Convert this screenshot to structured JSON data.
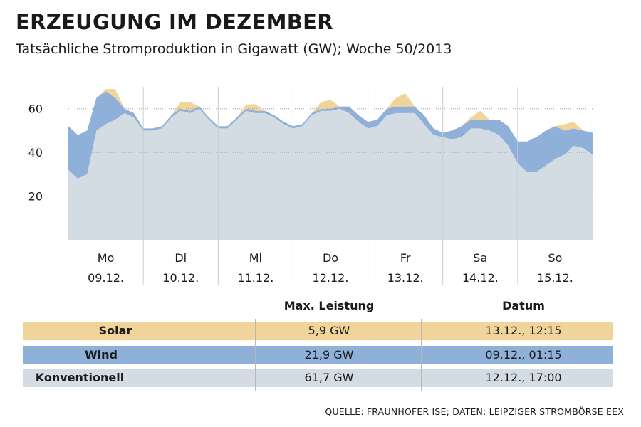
{
  "header": {
    "title": "ERZEUGUNG IM DEZEMBER",
    "subtitle": "Tatsächliche Stromproduktion in Gigawatt (GW); Woche 50/2013"
  },
  "colors": {
    "solar": "#f0d49a",
    "wind": "#8fb0d8",
    "konventionell": "#d3dbe3",
    "grid": "#9aa3ad"
  },
  "chart_data": {
    "type": "area",
    "title": "ERZEUGUNG IM DEZEMBER",
    "subtitle": "Tatsächliche Stromproduktion in Gigawatt (GW); Woche 50/2013",
    "ylabel": "",
    "xlabel": "",
    "ylim": [
      0,
      70
    ],
    "yticks": [
      20,
      40,
      60
    ],
    "grid": true,
    "stacked": true,
    "days": [
      {
        "weekday": "Mo",
        "date": "09.12."
      },
      {
        "weekday": "Di",
        "date": "10.12."
      },
      {
        "weekday": "Mi",
        "date": "11.12."
      },
      {
        "weekday": "Do",
        "date": "12.12."
      },
      {
        "weekday": "Fr",
        "date": "13.12."
      },
      {
        "weekday": "Sa",
        "date": "14.12."
      },
      {
        "weekday": "So",
        "date": "15.12."
      }
    ],
    "x_hours": [
      0,
      3,
      6,
      9,
      12,
      15,
      18,
      21,
      24,
      27,
      30,
      33,
      36,
      39,
      42,
      45,
      48,
      51,
      54,
      57,
      60,
      63,
      66,
      69,
      72,
      75,
      78,
      81,
      84,
      87,
      90,
      93,
      96,
      99,
      102,
      105,
      108,
      111,
      114,
      117,
      120,
      123,
      126,
      129,
      132,
      135,
      138,
      141,
      144,
      147,
      150,
      153,
      156,
      159,
      162,
      165,
      168
    ],
    "series": [
      {
        "name": "Konventionell",
        "values": [
          32,
          28,
          30,
          50,
          53,
          55,
          58,
          56,
          50,
          50,
          51,
          56,
          59,
          58,
          60,
          55,
          51,
          51,
          55,
          59,
          58,
          58,
          56,
          53,
          51,
          52,
          57,
          59,
          59,
          60,
          58,
          54,
          51,
          52,
          57,
          58,
          58,
          58,
          53,
          48,
          47,
          46,
          47,
          51,
          51,
          50,
          48,
          43,
          35,
          31,
          31,
          34,
          37,
          39,
          43,
          42,
          39
        ]
      },
      {
        "name": "Wind",
        "values": [
          20,
          20,
          20,
          15,
          15,
          10,
          2,
          2,
          1,
          1,
          1,
          1,
          1,
          1,
          1,
          1,
          1,
          1,
          1,
          1,
          1,
          1,
          1,
          1,
          1,
          1,
          1,
          1,
          1,
          1,
          3,
          3,
          3,
          3,
          3,
          3,
          3,
          3,
          4,
          3,
          2,
          4,
          5,
          4,
          4,
          5,
          7,
          9,
          10,
          14,
          16,
          16,
          15,
          11,
          8,
          8,
          10
        ]
      },
      {
        "name": "Solar",
        "values": [
          0,
          0,
          0,
          0,
          1,
          4,
          0,
          0,
          0,
          0,
          0,
          0,
          3,
          4,
          0,
          0,
          0,
          0,
          0,
          2,
          3,
          0,
          0,
          0,
          0,
          0,
          0,
          3,
          4,
          0,
          0,
          0,
          0,
          0,
          0,
          4,
          6,
          0,
          0,
          0,
          0,
          0,
          0,
          1,
          4,
          0,
          0,
          0,
          0,
          0,
          0,
          0,
          0,
          3,
          3,
          0,
          0
        ]
      }
    ]
  },
  "table": {
    "headers": [
      "Max. Leistung",
      "Datum"
    ],
    "rows": [
      {
        "name": "Solar",
        "max": "5,9 GW",
        "date": "13.12., 12:15",
        "color": "#f0d49a"
      },
      {
        "name": "Wind",
        "max": "21,9 GW",
        "date": "09.12., 01:15",
        "color": "#8fb0d8"
      },
      {
        "name": "Konventionell",
        "max": "61,7 GW",
        "date": "12.12., 17:00",
        "color": "#d3dbe3"
      }
    ]
  },
  "source": "QUELLE: FRAUNHOFER ISE; DATEN: LEIPZIGER STROMBÖRSE EEX"
}
